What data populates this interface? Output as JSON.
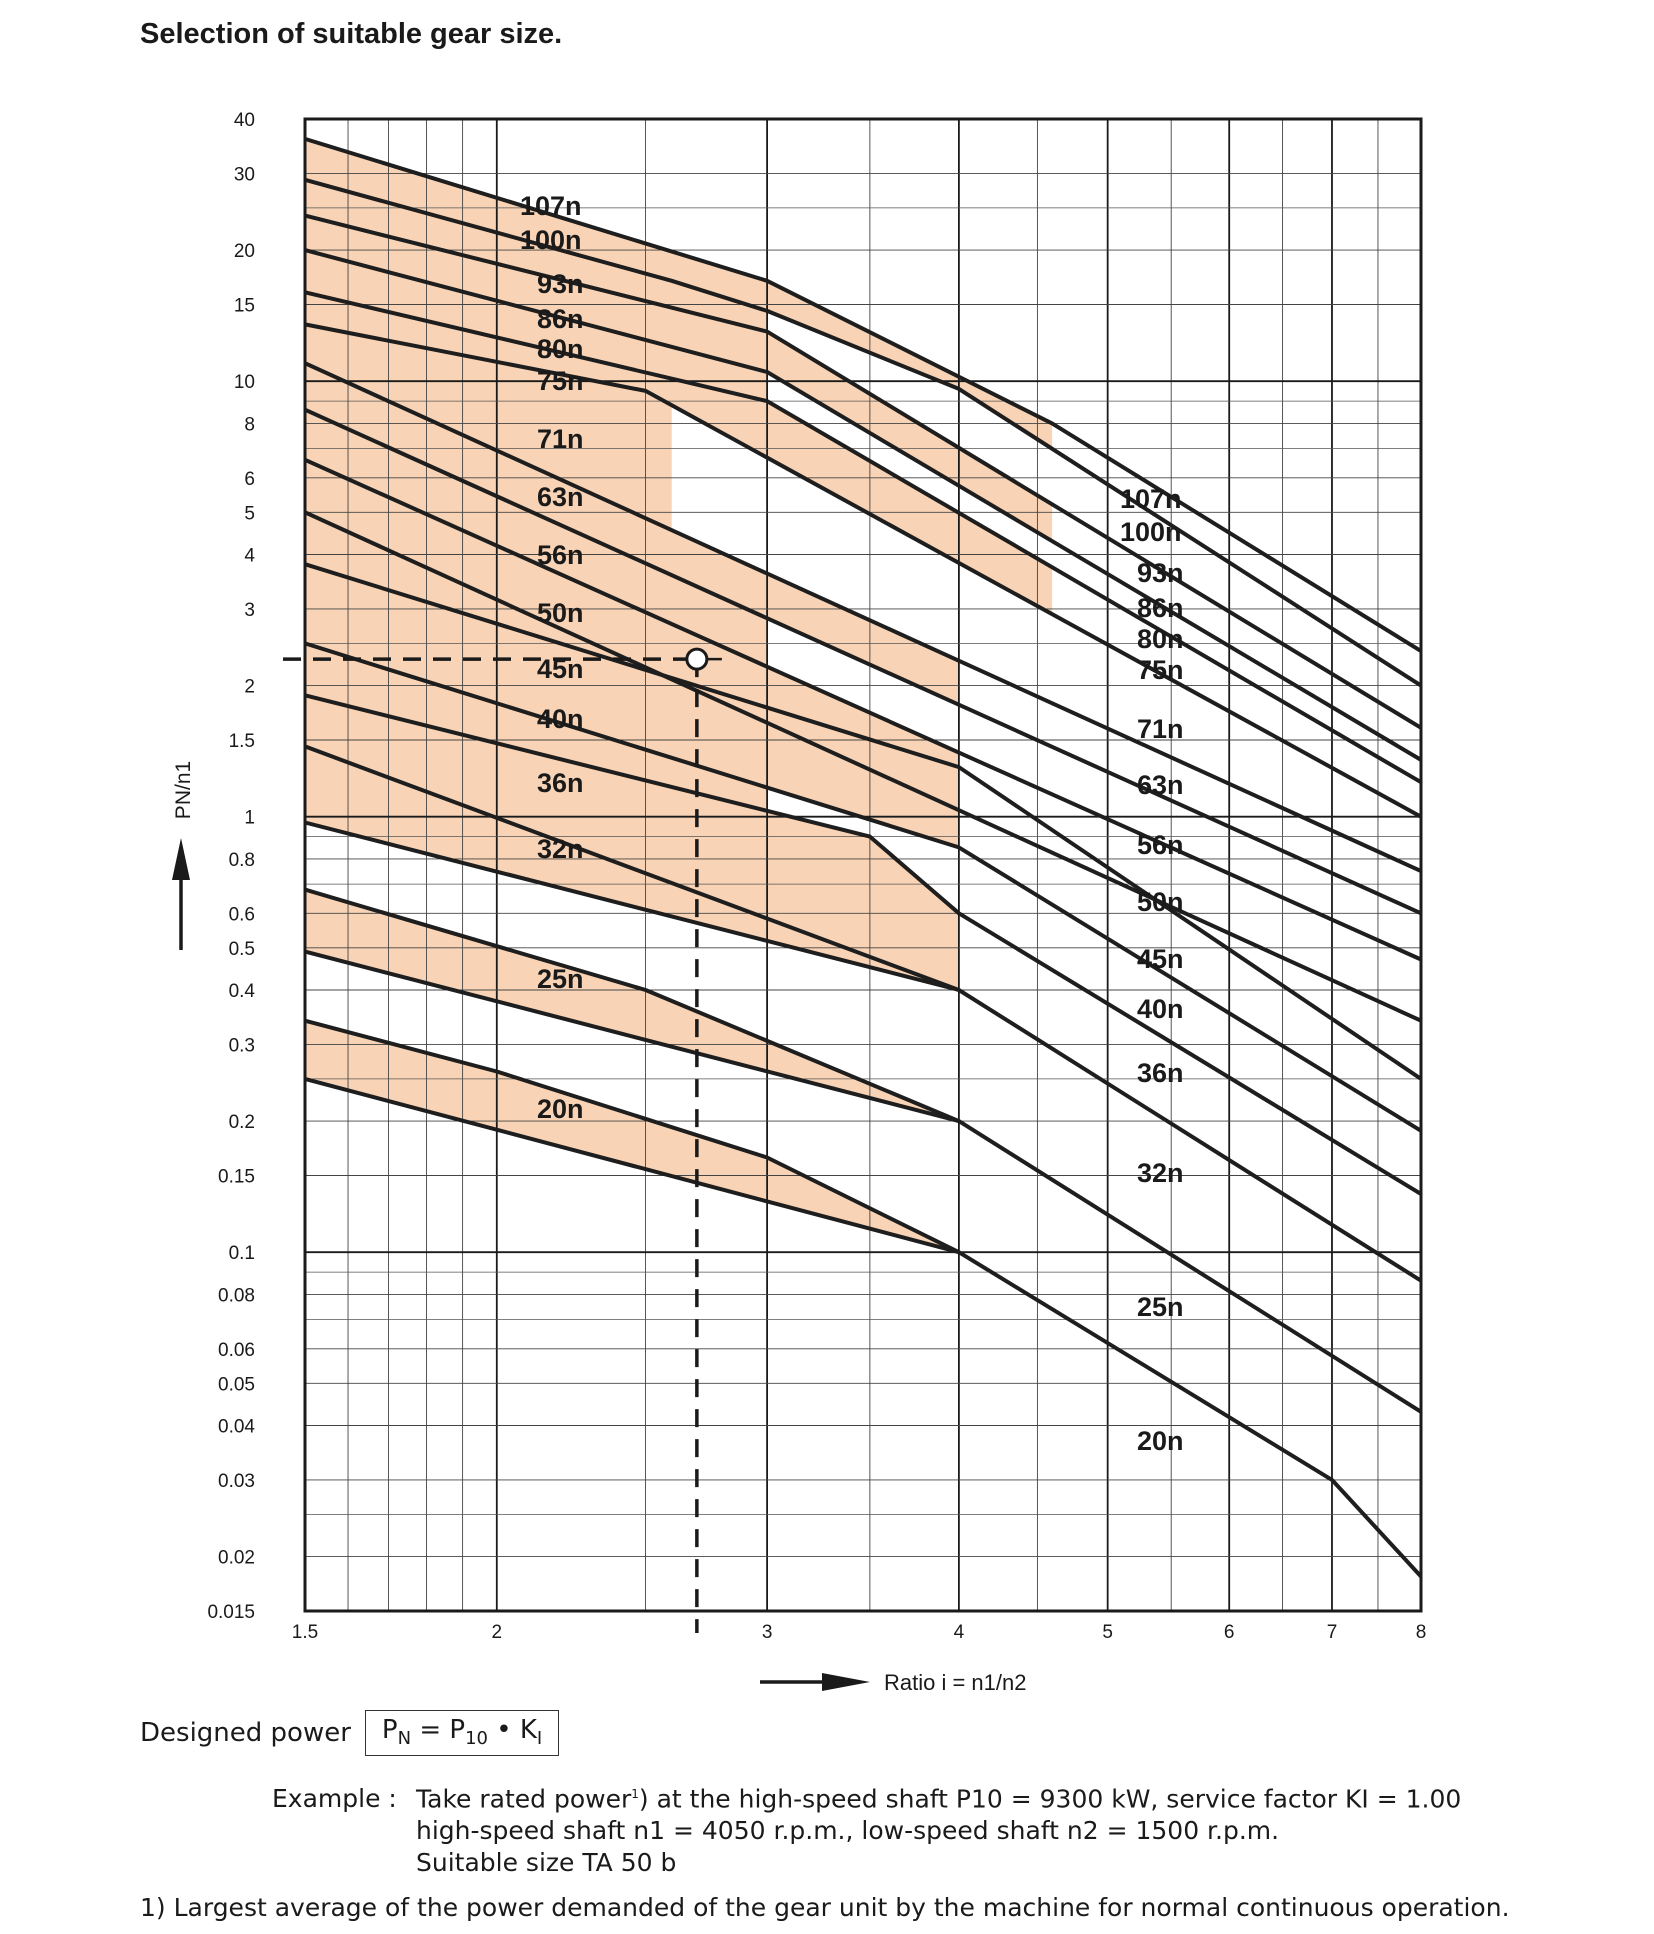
{
  "page": {
    "title": "Selection of suitable gear size."
  },
  "chart_data": {
    "type": "line",
    "title": "Selection of suitable gear size.",
    "xlabel": "Ratio i = n1/n2",
    "ylabel": "PN/n1",
    "x_scale": "log",
    "y_scale": "log",
    "xlim": [
      1.5,
      8
    ],
    "ylim": [
      0.015,
      40
    ],
    "x_ticks": [
      1.5,
      2,
      3,
      4,
      5,
      6,
      7,
      8
    ],
    "x_tick_labels": [
      "1.5",
      "2",
      "3",
      "4",
      "5",
      "6",
      "7",
      "8"
    ],
    "y_ticks": [
      40,
      30,
      20,
      15,
      10,
      8,
      6,
      5,
      4,
      3,
      2,
      1.5,
      1,
      0.8,
      0.6,
      0.5,
      0.4,
      0.3,
      0.2,
      0.15,
      0.1,
      0.08,
      0.06,
      0.05,
      0.04,
      0.03,
      0.02,
      0.015
    ],
    "y_tick_labels": [
      "40",
      "30",
      "20",
      "15",
      "10",
      "8",
      "6",
      "5",
      "4",
      "3",
      "2",
      "1.5",
      "1",
      "0.8",
      "0.6",
      "0.5",
      "0.4",
      "0.3",
      "0.2",
      "0.15",
      "0.1",
      "0.08",
      "0.06",
      "0.05",
      "0.04",
      "0.03",
      "0.02",
      "0.015"
    ],
    "minor_x_gridlines": [
      1.6,
      1.7,
      1.8,
      1.9,
      2.5,
      3.5,
      4.5,
      5.5,
      6.5,
      7.5
    ],
    "minor_y_gridlines": [
      25,
      9,
      7,
      2.5,
      0.9,
      0.7,
      0.25,
      0.09,
      0.07,
      0.025
    ],
    "grid": true,
    "series": [
      {
        "name": "107n",
        "points": [
          [
            1.5,
            36
          ],
          [
            3.0,
            17
          ],
          [
            4.6,
            8
          ],
          [
            8.0,
            2.4
          ]
        ]
      },
      {
        "name": "100n",
        "points": [
          [
            1.5,
            29
          ],
          [
            2.6,
            17
          ],
          [
            3.0,
            14.5
          ],
          [
            4.0,
            9.6
          ],
          [
            8.0,
            2.0
          ]
        ]
      },
      {
        "name": "93n",
        "points": [
          [
            1.5,
            24
          ],
          [
            3.0,
            13
          ],
          [
            8.0,
            1.6
          ]
        ]
      },
      {
        "name": "86n",
        "points": [
          [
            1.5,
            20
          ],
          [
            3.0,
            10.5
          ],
          [
            8.0,
            1.35
          ]
        ]
      },
      {
        "name": "80n",
        "points": [
          [
            1.5,
            16
          ],
          [
            3.0,
            9
          ],
          [
            8.0,
            1.2
          ]
        ]
      },
      {
        "name": "75n",
        "points": [
          [
            1.5,
            13.5
          ],
          [
            2.5,
            9.5
          ],
          [
            8.0,
            1.0
          ]
        ]
      },
      {
        "name": "71n",
        "points": [
          [
            1.5,
            11
          ],
          [
            8.0,
            0.75
          ]
        ]
      },
      {
        "name": "63n",
        "points": [
          [
            1.5,
            8.6
          ],
          [
            8.0,
            0.6
          ]
        ]
      },
      {
        "name": "56n",
        "points": [
          [
            1.5,
            6.6
          ],
          [
            8.0,
            0.47
          ]
        ]
      },
      {
        "name": "50n",
        "points": [
          [
            1.5,
            5
          ],
          [
            8.0,
            0.34
          ]
        ]
      },
      {
        "name": "45n",
        "points": [
          [
            1.5,
            3.8
          ],
          [
            4.0,
            1.3
          ],
          [
            8.0,
            0.25
          ]
        ]
      },
      {
        "name": "40n",
        "points": [
          [
            1.5,
            2.5
          ],
          [
            4.0,
            0.85
          ],
          [
            8.0,
            0.19
          ]
        ]
      },
      {
        "name": "36n",
        "points": [
          [
            1.5,
            1.9
          ],
          [
            3.5,
            0.9
          ],
          [
            4.0,
            0.6
          ],
          [
            8.0,
            0.136
          ]
        ]
      },
      {
        "name": "32n",
        "points": [
          [
            1.5,
            1.45
          ],
          [
            4.0,
            0.4
          ],
          [
            8.0,
            0.086
          ]
        ]
      },
      {
        "name": "32n_lower",
        "points": [
          [
            1.5,
            0.97
          ],
          [
            4.0,
            0.4
          ]
        ]
      },
      {
        "name": "25n",
        "points": [
          [
            1.5,
            0.68
          ],
          [
            2.5,
            0.4
          ],
          [
            4.0,
            0.2
          ],
          [
            8.0,
            0.043
          ]
        ]
      },
      {
        "name": "25n_lower",
        "points": [
          [
            1.5,
            0.49
          ],
          [
            4.0,
            0.2
          ]
        ]
      },
      {
        "name": "20n",
        "points": [
          [
            1.5,
            0.34
          ],
          [
            2.0,
            0.26
          ],
          [
            3.0,
            0.165
          ],
          [
            4.0,
            0.1
          ],
          [
            7.0,
            0.03
          ],
          [
            8.0,
            0.018
          ]
        ]
      },
      {
        "name": "20n_lower",
        "points": [
          [
            1.5,
            0.25
          ],
          [
            4.0,
            0.1
          ]
        ]
      }
    ],
    "left_labels": [
      "107n",
      "100n",
      "93n",
      "86n",
      "80n",
      "75n",
      "71n",
      "63n",
      "56n",
      "50n",
      "45n",
      "40n",
      "36n",
      "32n",
      "25n",
      "20n"
    ],
    "right_labels": [
      "107n",
      "100n",
      "93n",
      "86n",
      "80n",
      "75n",
      "71n",
      "63n",
      "56n",
      "50n",
      "45n",
      "40n",
      "36n",
      "32n",
      "25n",
      "20n"
    ],
    "example_point": {
      "x": 2.7,
      "y": 2.3
    },
    "band_color": "#f8d3b5",
    "line_color": "#1e1e1e"
  },
  "formula": {
    "label": "Designed power",
    "lhs": "P",
    "lhs_sub": "N",
    "eq": "=",
    "p": "P",
    "p_sub": "10",
    "dot": "•",
    "k": "K",
    "k_sub": "I"
  },
  "example": {
    "label": "Example :",
    "line1_a": "Take rated power",
    "line1_sup": "1",
    "line1_b": ") at the high-speed shaft P10 = 9300 kW, service factor KI = 1.00",
    "line2": "high-speed shaft n1 = 4050 r.p.m., low-speed shaft n2 = 1500 r.p.m.",
    "line3": "Suitable size TA 50 b"
  },
  "footnote": "1) Largest average of the power demanded of the gear unit by the machine for normal continuous operation."
}
